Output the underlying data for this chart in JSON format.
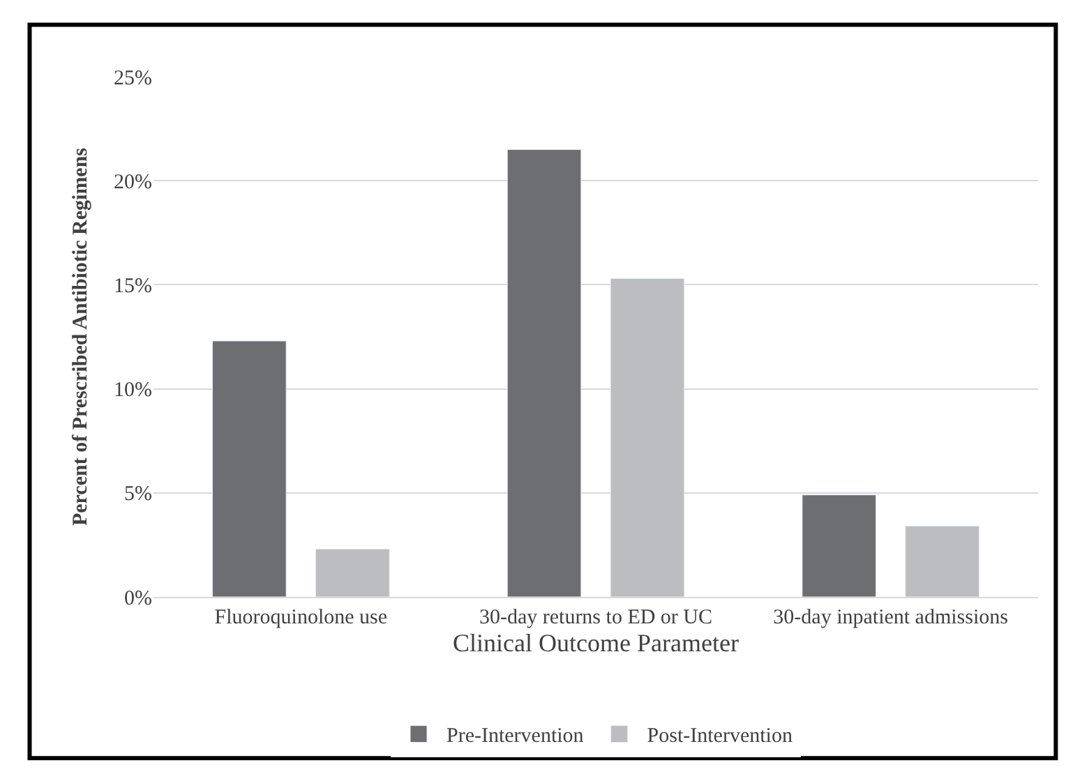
{
  "chart_data": {
    "type": "bar",
    "xlabel": "Clinical Outcome Parameter",
    "ylabel": "Percent of Prescribed Antibiotic Regimens",
    "categories": [
      "Fluoroquinolone use",
      "30-day returns to ED or UC",
      "30-day inpatient admissions"
    ],
    "series": [
      {
        "name": "Pre-Intervention",
        "color": "#6d6e71",
        "values": [
          12.3,
          21.5,
          4.9
        ]
      },
      {
        "name": "Post-Intervention",
        "color": "#bcbdc0",
        "values": [
          2.3,
          15.3,
          3.4
        ]
      }
    ],
    "ylim": [
      0,
      25
    ],
    "yticks": [
      {
        "value": 0,
        "label": "0%"
      },
      {
        "value": 5,
        "label": "5%"
      },
      {
        "value": 10,
        "label": "10%"
      },
      {
        "value": 15,
        "label": "15%"
      },
      {
        "value": 20,
        "label": "20%"
      },
      {
        "value": 25,
        "label": "25%"
      }
    ],
    "grid": "y",
    "legend": "bottom"
  }
}
